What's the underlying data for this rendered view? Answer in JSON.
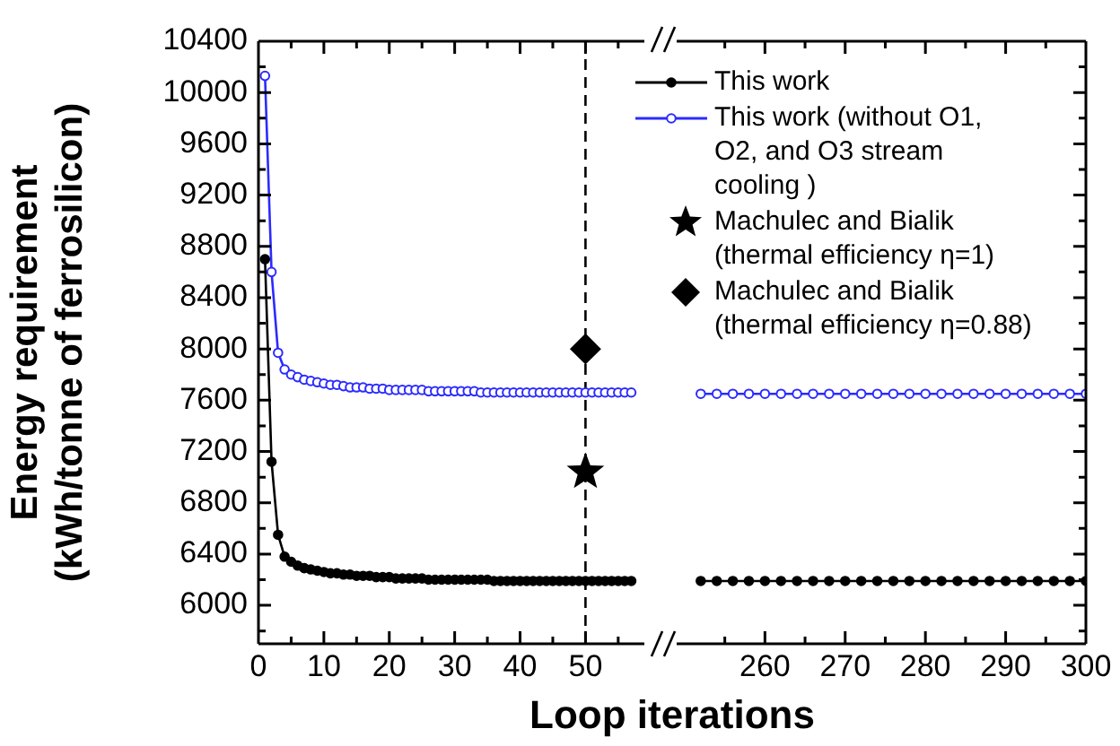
{
  "chart_data": [
    {
      "type": "line",
      "ylabel": "Energy requirement\n(kWh/tonne of ferrosilicon)",
      "xlabel": "Loop iterations",
      "legend": "top right",
      "grid": false,
      "xlim": [
        0,
        59
      ],
      "xticks": [
        0,
        {
          "value": 5,
          "label": null
        },
        10,
        {
          "value": 15,
          "label": null
        },
        20,
        {
          "value": 25,
          "label": null
        },
        30,
        {
          "value": 35,
          "label": null
        },
        40,
        {
          "value": 45,
          "label": null
        },
        50,
        {
          "value": 55,
          "label": null
        }
      ],
      "ylim": [
        5700,
        10400
      ],
      "yticks": [
        {
          "value": 5800,
          "label": null
        },
        6000,
        {
          "value": 6200,
          "label": null
        },
        6400,
        {
          "value": 6600,
          "label": null
        },
        6800,
        {
          "value": 7000,
          "label": null
        },
        7200,
        {
          "value": 7400,
          "label": null
        },
        7600,
        {
          "value": 7800,
          "label": null
        },
        8000,
        {
          "value": 8200,
          "label": null
        },
        8400,
        {
          "value": 8600,
          "label": null
        },
        8800,
        {
          "value": 9000,
          "label": null
        },
        9200,
        {
          "value": 9400,
          "label": null
        },
        9600,
        {
          "value": 9800,
          "label": null
        },
        10000,
        {
          "value": 10200,
          "label": null
        },
        10400
      ],
      "ref_lines": [
        {
          "axis": "x",
          "value": 50,
          "label": null,
          "color": "#000000",
          "line_style": "dashed"
        }
      ],
      "series": [
        {
          "name": "This work",
          "marker": "circle",
          "color": "#000000",
          "x": [
            1,
            2,
            3,
            4,
            5,
            6,
            7,
            8,
            9,
            10,
            11,
            12,
            13,
            14,
            15,
            16,
            17,
            18,
            19,
            20,
            21,
            22,
            23,
            24,
            25,
            26,
            27,
            28,
            29,
            30,
            31,
            32,
            33,
            34,
            35,
            36,
            37,
            38,
            39,
            40,
            41,
            42,
            43,
            44,
            45,
            46,
            47,
            48,
            49,
            50,
            51,
            52,
            53,
            54,
            55,
            56,
            57
          ],
          "values": [
            8700,
            7120,
            6550,
            6380,
            6340,
            6310,
            6290,
            6280,
            6270,
            6260,
            6250,
            6250,
            6240,
            6240,
            6230,
            6230,
            6230,
            6220,
            6220,
            6220,
            6210,
            6210,
            6210,
            6210,
            6210,
            6200,
            6200,
            6200,
            6200,
            6200,
            6200,
            6200,
            6200,
            6200,
            6200,
            6190,
            6190,
            6190,
            6190,
            6190,
            6190,
            6190,
            6190,
            6190,
            6190,
            6190,
            6190,
            6190,
            6190,
            6190,
            6190,
            6190,
            6190,
            6190,
            6190,
            6190,
            6190
          ]
        },
        {
          "name": "This work (without O1, O2, and O3 stream cooling )",
          "marker": "circle",
          "color": "#2b2bff",
          "x": [
            1,
            2,
            3,
            4,
            5,
            6,
            7,
            8,
            9,
            10,
            11,
            12,
            13,
            14,
            15,
            16,
            17,
            18,
            19,
            20,
            21,
            22,
            23,
            24,
            25,
            26,
            27,
            28,
            29,
            30,
            31,
            32,
            33,
            34,
            35,
            36,
            37,
            38,
            39,
            40,
            41,
            42,
            43,
            44,
            45,
            46,
            47,
            48,
            49,
            50,
            51,
            52,
            53,
            54,
            55,
            56,
            57
          ],
          "values": [
            10130,
            8600,
            7970,
            7840,
            7800,
            7780,
            7760,
            7750,
            7740,
            7730,
            7720,
            7720,
            7710,
            7700,
            7700,
            7700,
            7690,
            7690,
            7690,
            7680,
            7680,
            7680,
            7680,
            7680,
            7680,
            7670,
            7670,
            7670,
            7670,
            7670,
            7670,
            7670,
            7670,
            7660,
            7660,
            7660,
            7660,
            7660,
            7660,
            7660,
            7660,
            7660,
            7660,
            7660,
            7660,
            7660,
            7660,
            7660,
            7660,
            7660,
            7660,
            7660,
            7660,
            7660,
            7660,
            7660,
            7660
          ]
        },
        {
          "name": "Machulec and Bialik (thermal efficiency η=1)",
          "type": "scatter",
          "marker": "star",
          "color": "#000000",
          "x": [
            50
          ],
          "values": [
            7040
          ]
        },
        {
          "name": "Machulec and Bialik (thermal efficiency η=0.88)",
          "type": "scatter",
          "marker": "diamond",
          "color": "#000000",
          "x": [
            50
          ],
          "values": [
            8000
          ]
        }
      ]
    },
    {
      "type": "line",
      "tick_labels": "x",
      "grid": false,
      "xlim": [
        249,
        300
      ],
      "xticks": [
        {
          "value": 255,
          "label": null
        },
        260,
        {
          "value": 265,
          "label": null
        },
        270,
        {
          "value": 275,
          "label": null
        },
        280,
        {
          "value": 285,
          "label": null
        },
        290,
        {
          "value": 295,
          "label": null
        },
        300
      ],
      "ylim": [
        5700,
        10400
      ],
      "yticks": [
        {
          "value": 5800,
          "label": null
        },
        6000,
        {
          "value": 6200,
          "label": null
        },
        6400,
        {
          "value": 6600,
          "label": null
        },
        6800,
        {
          "value": 7000,
          "label": null
        },
        7200,
        {
          "value": 7400,
          "label": null
        },
        7600,
        {
          "value": 7800,
          "label": null
        },
        8000,
        {
          "value": 8200,
          "label": null
        },
        8400,
        {
          "value": 8600,
          "label": null
        },
        8800,
        {
          "value": 9000,
          "label": null
        },
        9200,
        {
          "value": 9400,
          "label": null
        },
        9600,
        {
          "value": 9800,
          "label": null
        },
        10000,
        {
          "value": 10200,
          "label": null
        },
        10400
      ],
      "series": [
        {
          "marker": "circle",
          "color": "#000000",
          "x": [
            252,
            254,
            256,
            258,
            260,
            262,
            264,
            266,
            268,
            270,
            272,
            274,
            276,
            278,
            280,
            282,
            284,
            286,
            288,
            290,
            292,
            294,
            296,
            298,
            300
          ],
          "values": [
            6190,
            6190,
            6190,
            6190,
            6190,
            6190,
            6190,
            6190,
            6190,
            6190,
            6190,
            6190,
            6190,
            6190,
            6190,
            6190,
            6190,
            6190,
            6190,
            6190,
            6190,
            6190,
            6190,
            6190,
            6190
          ]
        },
        {
          "marker": "circle",
          "color": "#2b2bff",
          "x": [
            252,
            254,
            256,
            258,
            260,
            262,
            264,
            266,
            268,
            270,
            272,
            274,
            276,
            278,
            280,
            282,
            284,
            286,
            288,
            290,
            292,
            294,
            296,
            298,
            300
          ],
          "values": [
            7650,
            7650,
            7650,
            7650,
            7650,
            7650,
            7650,
            7650,
            7650,
            7650,
            7650,
            7650,
            7650,
            7650,
            7650,
            7650,
            7650,
            7650,
            7650,
            7650,
            7650,
            7650,
            7650,
            7650,
            7650
          ]
        }
      ]
    }
  ]
}
